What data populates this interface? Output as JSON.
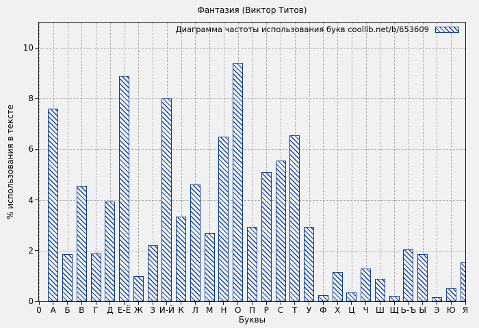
{
  "chart_data": {
    "type": "bar",
    "title": "Фантазия (Виктор Титов)",
    "legend": "Диаграмма частоты использования букв coollib.net/b/653609",
    "legend_position": "top-right-inside",
    "xlabel": "Буквы",
    "ylabel": "% использования в тексте",
    "x_ticks": [
      "0",
      "А",
      "Б",
      "В",
      "Г",
      "Д",
      "Е-Ё",
      "Ж",
      "З",
      "И-Й",
      "К",
      "Л",
      "М",
      "Н",
      "О",
      "П",
      "Р",
      "С",
      "Т",
      "У",
      "Ф",
      "Х",
      "Ц",
      "Ч",
      "Ш",
      "Щ",
      "Ь-Ъ",
      "Ы",
      "Э",
      "Ю",
      "Я"
    ],
    "categories": [
      "А",
      "Б",
      "В",
      "Г",
      "Д",
      "Е-Ё",
      "Ж",
      "З",
      "И-Й",
      "К",
      "Л",
      "М",
      "Н",
      "О",
      "П",
      "Р",
      "С",
      "Т",
      "У",
      "Ф",
      "Х",
      "Ц",
      "Ч",
      "Ш",
      "Щ",
      "Ь-Ъ",
      "Ы",
      "Э",
      "Ю",
      "Я"
    ],
    "values": [
      7.6,
      1.85,
      4.55,
      1.9,
      3.95,
      8.9,
      1.0,
      2.2,
      8.0,
      3.35,
      4.6,
      2.7,
      6.5,
      9.4,
      2.95,
      5.1,
      5.55,
      6.55,
      2.95,
      0.25,
      1.15,
      0.35,
      1.3,
      0.9,
      0.22,
      2.05,
      1.85,
      0.15,
      0.5,
      1.55
    ],
    "ylim": [
      0,
      11
    ],
    "yticks": [
      0,
      2,
      4,
      6,
      8,
      10
    ],
    "grid": true,
    "hatch": "diagonal-backslash",
    "bar_color": "#0a3c9c",
    "background_color": "#f1f1f1",
    "grid_color": "#a9a9a9"
  }
}
